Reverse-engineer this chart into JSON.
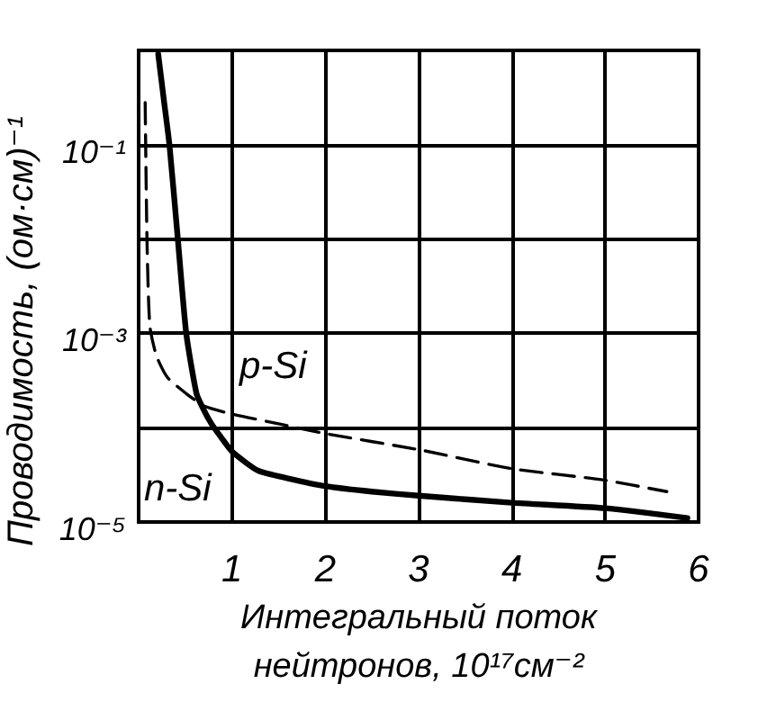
{
  "chart_data": {
    "type": "line",
    "xlabel": "Интегральный поток\nнейтронов, 10¹⁷см⁻²",
    "ylabel": "Проводимость, (ом·см)⁻¹",
    "log": "y",
    "xlim": [
      0,
      6
    ],
    "ylim": [
      1e-05,
      1
    ],
    "xticks": [
      1,
      2,
      3,
      4,
      5,
      6
    ],
    "yticks": [
      {
        "value": 1,
        "label": null
      },
      {
        "value": 0.1,
        "label": "10⁻¹"
      },
      {
        "value": 0.01,
        "label": null
      },
      {
        "value": 0.001,
        "label": "10⁻³"
      },
      {
        "value": 0.0001,
        "label": null
      },
      {
        "value": 1e-05,
        "label": "10⁻⁵"
      }
    ],
    "grid": true,
    "marker": "none",
    "series": [
      {
        "name": "n-Si",
        "color": "#000000",
        "line_style": "solid",
        "x": [
          0.21,
          0.27,
          0.33,
          0.42,
          0.51,
          0.62,
          0.69,
          0.78,
          0.88,
          1,
          1.28,
          1.6,
          2,
          2.5,
          3,
          4,
          5,
          5.88
        ],
        "values": [
          0.91,
          0.3,
          0.1,
          0.01,
          0.001,
          0.00023,
          0.00016,
          0.00011,
          8e-05,
          5.6e-05,
          3.5e-05,
          2.9e-05,
          2.4e-05,
          2.1e-05,
          1.9e-05,
          1.6e-05,
          1.4e-05,
          1.1e-05
        ]
      },
      {
        "name": "p-Si",
        "color": "#000000",
        "line_style": "dashed",
        "x": [
          0.07,
          0.09,
          0.12,
          0.19,
          0.31,
          0.51,
          0.7,
          0.99,
          1.5,
          1.99,
          3.02,
          3.98,
          4.97,
          5.66
        ],
        "values": [
          0.28,
          0.0093,
          0.0012,
          0.00058,
          0.00034,
          0.00023,
          0.00017,
          0.00014,
          0.00011,
          8.7e-05,
          5.8e-05,
          3.7e-05,
          2.8e-05,
          2.1e-05
        ]
      }
    ]
  }
}
